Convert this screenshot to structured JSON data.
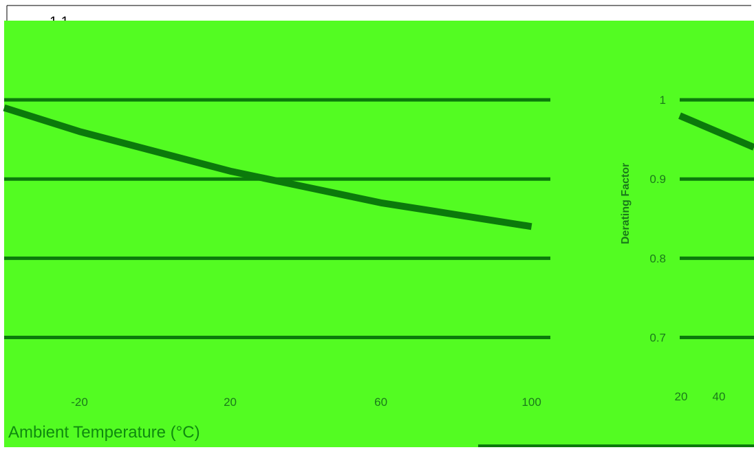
{
  "chart_data": [
    {
      "type": "line",
      "title": "",
      "xlabel": "Ambient Temperature (°C)",
      "ylabel": "",
      "x_ticks": [
        "-20",
        "20",
        "60",
        "100"
      ],
      "y_ticks": [
        "1",
        "0.9",
        "0.8",
        "0.7"
      ],
      "ylim": [
        0.65,
        1.1
      ],
      "xlim": [
        -40,
        105
      ],
      "grid": true,
      "series": [
        {
          "values": [
            [
              -40,
              0.99
            ],
            [
              -20,
              0.96
            ],
            [
              0,
              0.935
            ],
            [
              20,
              0.91
            ],
            [
              40,
              0.89
            ],
            [
              60,
              0.87
            ],
            [
              80,
              0.855
            ],
            [
              100,
              0.84
            ]
          ]
        }
      ]
    },
    {
      "type": "line",
      "title": "",
      "xlabel": "",
      "ylabel": "Derating Factor",
      "x_ticks": [
        "20",
        "40"
      ],
      "y_ticks": [
        "1",
        "0.9",
        "0.8",
        "0.7"
      ],
      "ylim": [
        0.65,
        1.1
      ],
      "xlim": [
        20,
        40
      ],
      "grid": true,
      "series": [
        {
          "values": [
            [
              20,
              0.98
            ],
            [
              30,
              0.96
            ],
            [
              40,
              0.94
            ]
          ]
        }
      ]
    }
  ],
  "top_tick_label": "1.1",
  "colors": {
    "background": "#53fc22",
    "grid": "#0b7a0b",
    "line": "#0b7a0b",
    "label": "#0f8a0f"
  }
}
